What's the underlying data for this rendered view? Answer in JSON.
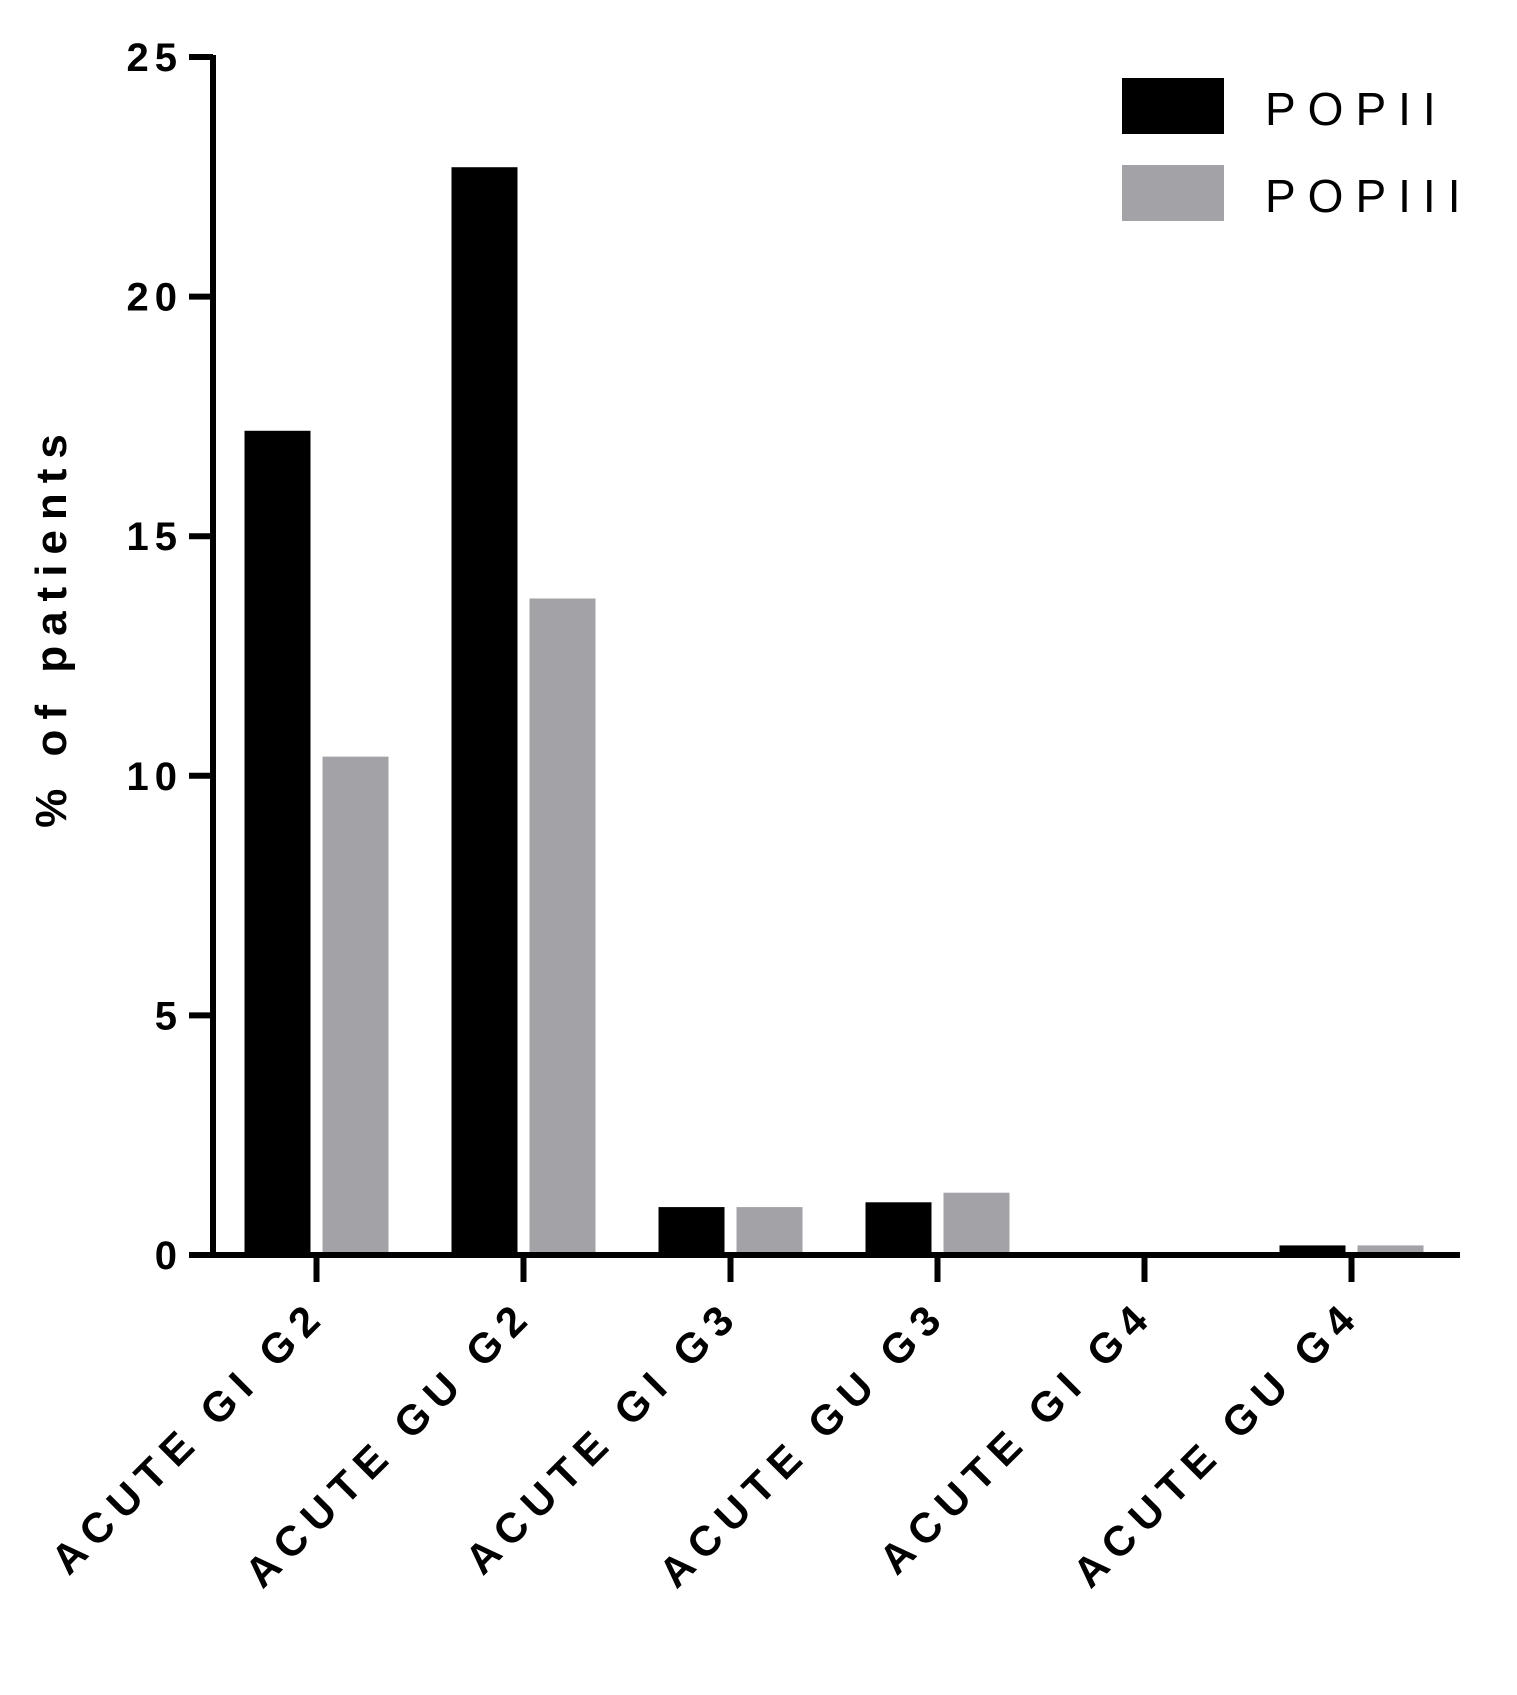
{
  "chart_data": {
    "type": "bar",
    "title": "",
    "xlabel": "",
    "ylabel": "% of patients",
    "ylim": [
      0,
      25
    ],
    "yticks": [
      "0",
      "5",
      "10",
      "15",
      "20",
      "25"
    ],
    "grid": false,
    "legend_position": "top-right",
    "categories": [
      "ACUTE GI G2",
      "ACUTE GU G2",
      "ACUTE GI G3",
      "ACUTE GU G3",
      "ACUTE GI G4",
      "ACUTE GU G4"
    ],
    "series": [
      {
        "name": "POPII",
        "color": "#000000",
        "values": [
          17.2,
          22.7,
          1.0,
          1.1,
          0.0,
          0.2
        ]
      },
      {
        "name": "POPIII",
        "color": "#a3a3a7",
        "values": [
          10.4,
          13.7,
          1.0,
          1.3,
          0.0,
          0.2
        ]
      }
    ]
  }
}
